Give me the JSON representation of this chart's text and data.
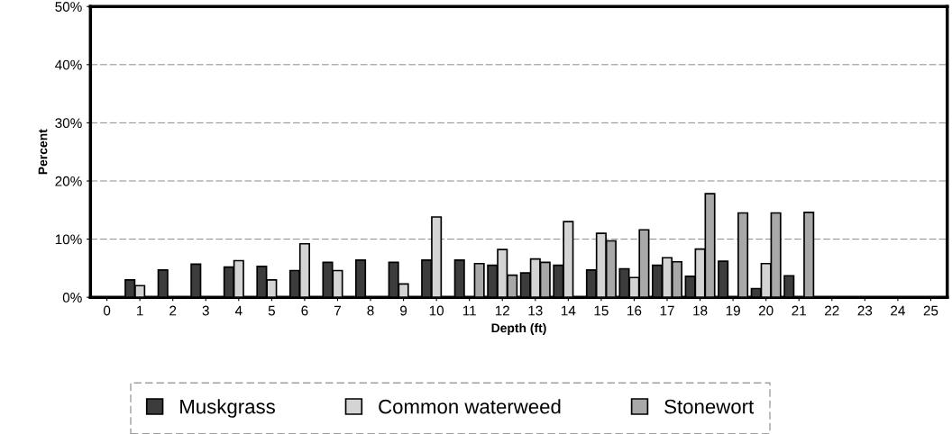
{
  "chart_data": {
    "type": "bar",
    "xlabel": "Depth (ft)",
    "ylabel": "Percent",
    "categories": [
      "0",
      "1",
      "2",
      "3",
      "4",
      "5",
      "6",
      "7",
      "8",
      "9",
      "10",
      "11",
      "12",
      "13",
      "14",
      "15",
      "16",
      "17",
      "18",
      "19",
      "20",
      "21",
      "22",
      "23",
      "24",
      "25"
    ],
    "series": [
      {
        "name": "Muskgrass",
        "color": "#3c3c3c",
        "values": [
          null,
          3.0,
          4.7,
          5.7,
          5.2,
          5.3,
          4.6,
          6.0,
          6.4,
          6.0,
          6.4,
          6.4,
          5.5,
          4.2,
          5.5,
          4.7,
          4.9,
          5.5,
          3.6,
          6.2,
          1.5,
          3.7,
          null,
          null,
          null,
          null
        ]
      },
      {
        "name": "Common waterweed",
        "color": "#d4d4d4",
        "values": [
          null,
          2.0,
          null,
          null,
          6.3,
          3.0,
          9.2,
          4.6,
          null,
          2.3,
          13.8,
          null,
          8.2,
          6.6,
          13.0,
          11.0,
          3.4,
          6.8,
          8.3,
          null,
          5.8,
          null,
          null,
          null,
          null,
          null
        ]
      },
      {
        "name": "Stonewort",
        "color": "#a8a8a8",
        "values": [
          null,
          null,
          null,
          null,
          null,
          null,
          null,
          null,
          null,
          null,
          null,
          5.8,
          3.8,
          6.0,
          null,
          9.7,
          11.6,
          6.1,
          17.8,
          14.5,
          14.5,
          14.6,
          null,
          null,
          null,
          null
        ]
      }
    ],
    "ylim": [
      0,
      50
    ],
    "yticks": [
      {
        "value": 0,
        "label": "0%"
      },
      {
        "value": 10,
        "label": "10%"
      },
      {
        "value": 20,
        "label": "20%"
      },
      {
        "value": 30,
        "label": "30%"
      },
      {
        "value": 40,
        "label": "40%"
      },
      {
        "value": 50,
        "label": "50%"
      }
    ],
    "grid": "y",
    "legend": "bottom"
  }
}
